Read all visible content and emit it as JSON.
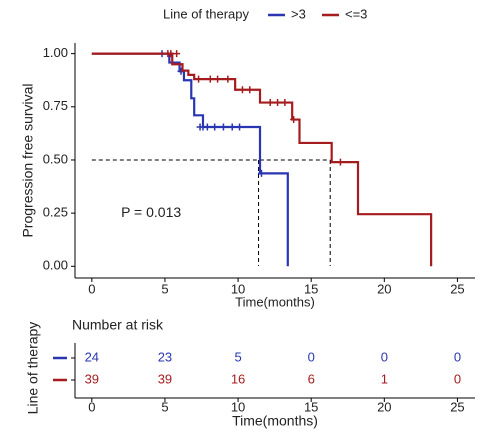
{
  "chart_data": [
    {
      "type": "step",
      "legend_title": "Line of therapy",
      "x_label": "Time(months)",
      "y_label": "Progression free survival",
      "annotation": "P = 0.013",
      "annotation_x": 2,
      "annotation_y": 0.25,
      "xlim": [
        -1.15,
        26.2
      ],
      "xticks": [
        0,
        5,
        10,
        15,
        20,
        25
      ],
      "ylim": [
        -0.055,
        1.05
      ],
      "yticks": [
        {
          "value": 0,
          "label": "0.00"
        },
        {
          "value": 0.25,
          "label": "0.25"
        },
        {
          "value": 0.5,
          "label": "0.50"
        },
        {
          "value": 0.75,
          "label": "0.75"
        },
        {
          "value": 1,
          "label": "1.00"
        }
      ],
      "median": 0.5,
      "median_x": [
        11.4,
        16.3
      ],
      "series": [
        {
          "name": ">3",
          "color": "#2a36b1",
          "x": [
            0,
            5.3,
            6.0,
            6.3,
            6.8,
            7.0,
            7.6,
            11.5,
            13.4
          ],
          "values": [
            1,
            0.958,
            0.917,
            0.875,
            0.79,
            0.71,
            0.655,
            0.437,
            0
          ],
          "censor_x": [
            4.8,
            6.1,
            7.4,
            7.6,
            7.9,
            8.4,
            9.0,
            9.6,
            10.1,
            11.6
          ],
          "censor_values": [
            1,
            0.917,
            0.655,
            0.655,
            0.655,
            0.655,
            0.655,
            0.655,
            0.655,
            0.437
          ]
        },
        {
          "name": "<=3",
          "color": "#a51c1f",
          "x": [
            0,
            5.5,
            6.2,
            6.6,
            7.0,
            9.8,
            11.5,
            13.7,
            14.2,
            16.4,
            18.2,
            23.2
          ],
          "values": [
            1,
            0.95,
            0.92,
            0.9,
            0.88,
            0.83,
            0.77,
            0.69,
            0.58,
            0.49,
            0.245,
            0
          ],
          "censor_x": [
            5.2,
            5.4,
            5.8,
            7.3,
            8.1,
            8.6,
            9.3,
            10.3,
            10.8,
            12.2,
            12.7,
            13.2,
            13.8,
            17.0
          ],
          "censor_values": [
            1,
            1,
            1,
            0.88,
            0.88,
            0.88,
            0.88,
            0.83,
            0.83,
            0.77,
            0.77,
            0.77,
            0.69,
            0.49
          ]
        }
      ]
    },
    {
      "type": "table",
      "title": "Number at risk",
      "y_label": "Line of therapy",
      "x_label": "Time(months)",
      "xlim": [
        -1.15,
        26.2
      ],
      "xticks": [
        0,
        5,
        10,
        15,
        20,
        25
      ],
      "series": [
        {
          "name": ">3",
          "color": "#2a36b1",
          "values": [
            24,
            23,
            5,
            0,
            0,
            0
          ]
        },
        {
          "name": "<=3",
          "color": "#a51c1f",
          "values": [
            39,
            39,
            16,
            6,
            1,
            0
          ]
        }
      ]
    }
  ]
}
